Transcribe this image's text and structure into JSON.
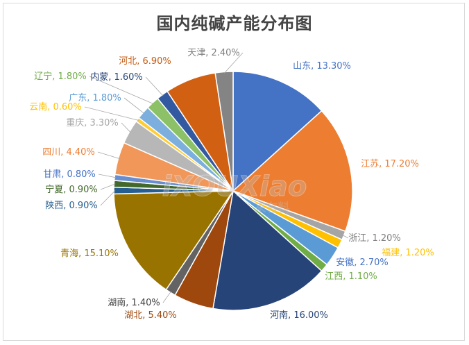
{
  "chart_data": {
    "type": "pie",
    "title": "国内纯碱产能分布图",
    "slices": [
      {
        "name": "山东",
        "value": 13.3,
        "label": "山东, 13.30%",
        "color": "#4472c4",
        "label_color": "#4472c4"
      },
      {
        "name": "江苏",
        "value": 17.2,
        "label": "江苏, 17.20%",
        "color": "#ed7d31",
        "label_color": "#ed7d31"
      },
      {
        "name": "浙江",
        "value": 1.2,
        "label": "浙江, 1.20%",
        "color": "#a5a5a5",
        "label_color": "#7f7f7f"
      },
      {
        "name": "福建",
        "value": 1.2,
        "label": "福建, 1.20%",
        "color": "#ffc000",
        "label_color": "#ffc000"
      },
      {
        "name": "安徽",
        "value": 2.7,
        "label": "安徽, 2.70%",
        "color": "#5b9bd5",
        "label_color": "#4472c4"
      },
      {
        "name": "江西",
        "value": 1.1,
        "label": "江西, 1.10%",
        "color": "#70ad47",
        "label_color": "#70ad47"
      },
      {
        "name": "河南",
        "value": 16.0,
        "label": "河南, 16.00%",
        "color": "#264478",
        "label_color": "#264478"
      },
      {
        "name": "湖北",
        "value": 5.4,
        "label": "湖北, 5.40%",
        "color": "#9e480e",
        "label_color": "#9e480e"
      },
      {
        "name": "湖南",
        "value": 1.4,
        "label": "湖南, 1.40%",
        "color": "#636363",
        "label_color": "#404040"
      },
      {
        "name": "青海",
        "value": 15.1,
        "label": "青海, 15.10%",
        "color": "#997300",
        "label_color": "#997300"
      },
      {
        "name": "陕西",
        "value": 0.9,
        "label": "陕西, 0.90%",
        "color": "#255e91",
        "label_color": "#255e91"
      },
      {
        "name": "宁夏",
        "value": 0.9,
        "label": "宁夏, 0.90%",
        "color": "#43682b",
        "label_color": "#43682b"
      },
      {
        "name": "甘肃",
        "value": 0.8,
        "label": "甘肃, 0.80%",
        "color": "#698ed0",
        "label_color": "#4472c4"
      },
      {
        "name": "四川",
        "value": 4.4,
        "label": "四川, 4.40%",
        "color": "#f1975a",
        "label_color": "#ed7d31"
      },
      {
        "name": "重庆",
        "value": 3.3,
        "label": "重庆, 3.30%",
        "color": "#b7b7b7",
        "label_color": "#a5a5a5"
      },
      {
        "name": "云南",
        "value": 0.6,
        "label": "云南, 0.60%",
        "color": "#ffcd33",
        "label_color": "#ffc000"
      },
      {
        "name": "广东",
        "value": 1.8,
        "label": "广东, 1.80%",
        "color": "#7cafdd",
        "label_color": "#5b9bd5"
      },
      {
        "name": "辽宁",
        "value": 1.8,
        "label": "辽宁, 1.80%",
        "color": "#8cc168",
        "label_color": "#70ad47"
      },
      {
        "name": "内蒙",
        "value": 1.6,
        "label": "内蒙, 1.60%",
        "color": "#335aa1",
        "label_color": "#264478"
      },
      {
        "name": "河北",
        "value": 6.9,
        "label": "河北, 6.90%",
        "color": "#d26012",
        "label_color": "#c55a11"
      },
      {
        "name": "天津",
        "value": 2.4,
        "label": "天津, 2.40%",
        "color": "#848484",
        "label_color": "#7f7f7f"
      }
    ]
  },
  "watermark": {
    "latin": "iXOUXiao",
    "cjk": "来有料"
  }
}
